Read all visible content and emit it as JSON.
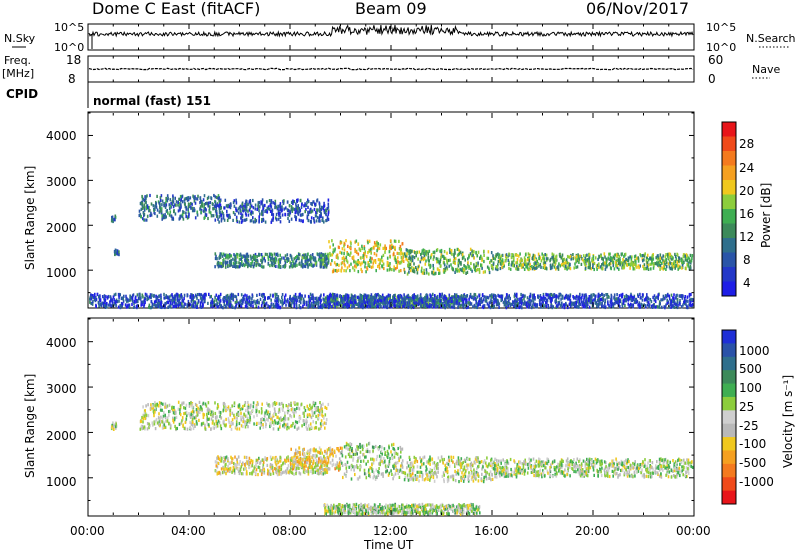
{
  "header": {
    "station": "Dome C East (fitACF)",
    "beam": "Beam 09",
    "date": "06/Nov/2017"
  },
  "strip_labels": {
    "nsky": "N.Sky",
    "nsky_ticks": [
      "10^5",
      "10^0"
    ],
    "nsearch": "N.Search",
    "nsearch_ticks": [
      "10^5",
      "10^0"
    ],
    "freq": "Freq.",
    "freq_unit": "[MHz]",
    "freq_ticks": [
      "18",
      "8"
    ],
    "nave": "Nave",
    "nave_ticks": [
      "60",
      "0"
    ],
    "cpid": "CPID",
    "cpid_text": "normal (fast) 151"
  },
  "axes": {
    "ylabel": "Slant Range [km]",
    "yticks": [
      "4000",
      "3000",
      "2000",
      "1000"
    ],
    "xlabel": "Time UT",
    "xticks": [
      "00:00",
      "04:00",
      "08:00",
      "12:00",
      "16:00",
      "20:00",
      "00:00"
    ]
  },
  "colorbars": {
    "power": {
      "label": "Power [dB]",
      "ticks": [
        "28",
        "24",
        "20",
        "16",
        "12",
        "8",
        "4"
      ],
      "colors": [
        "#e8151a",
        "#f04a1a",
        "#f47a1e",
        "#f5a020",
        "#f0c81e",
        "#8ccd3c",
        "#3fae52",
        "#3c8a5a",
        "#2f6f8c",
        "#2a55a8",
        "#2338c8",
        "#1e1ee6"
      ]
    },
    "velocity": {
      "label": "Velocity [m s⁻¹]",
      "ticks": [
        "1000",
        "500",
        "100",
        "25",
        "-25",
        "-100",
        "-500",
        "-1000"
      ],
      "colors": [
        "#1f2fd6",
        "#2a52a8",
        "#2f6f8c",
        "#3c8a5a",
        "#3fae52",
        "#8ccd3c",
        "#cfcfcf",
        "#b9b9b9",
        "#f0c81e",
        "#f5a020",
        "#f47a1e",
        "#f04a1a",
        "#e8151a"
      ]
    }
  },
  "chart_data": [
    {
      "type": "heatmap",
      "title": "Power",
      "xlabel": "Time UT",
      "ylabel": "Slant Range [km]",
      "x_range_hours": [
        0,
        24
      ],
      "y_range_km": [
        180,
        4500
      ],
      "z_range_db": [
        0,
        30
      ],
      "clusters": [
        {
          "t_start": 0.9,
          "t_end": 1.1,
          "r_low": 2100,
          "r_high": 2250,
          "value": 8
        },
        {
          "t_start": 1.0,
          "t_end": 1.2,
          "r_low": 1380,
          "r_high": 1480,
          "value": 8
        },
        {
          "t_start": 2.0,
          "t_end": 5.2,
          "r_low": 2150,
          "r_high": 2700,
          "value": 8
        },
        {
          "t_start": 5.0,
          "t_end": 9.5,
          "r_low": 2100,
          "r_high": 2600,
          "value": 6
        },
        {
          "t_start": 5.0,
          "t_end": 9.5,
          "r_low": 1100,
          "r_high": 1400,
          "value": 10
        },
        {
          "t_start": 9.5,
          "t_end": 12.5,
          "r_low": 1000,
          "r_high": 1700,
          "value": 18
        },
        {
          "t_start": 12.5,
          "t_end": 16.0,
          "r_low": 950,
          "r_high": 1500,
          "value": 14
        },
        {
          "t_start": 16.0,
          "t_end": 24.0,
          "r_low": 1050,
          "r_high": 1400,
          "value": 14
        },
        {
          "t_start": 9.3,
          "t_end": 14.8,
          "r_low": 230,
          "r_high": 450,
          "value": 12
        },
        {
          "t_start": 0.0,
          "t_end": 24.0,
          "r_low": 200,
          "r_high": 500,
          "value": 5
        }
      ]
    },
    {
      "type": "heatmap",
      "title": "Velocity",
      "xlabel": "Time UT",
      "ylabel": "Slant Range [km]",
      "x_range_hours": [
        0,
        24
      ],
      "y_range_km": [
        180,
        4500
      ],
      "z_range_ms": [
        -1000,
        1000
      ],
      "clusters": [
        {
          "t_start": 0.9,
          "t_end": 1.1,
          "r_low": 2100,
          "r_high": 2250,
          "value": 0
        },
        {
          "t_start": 2.0,
          "t_end": 9.5,
          "r_low": 2100,
          "r_high": 2700,
          "value": 0
        },
        {
          "t_start": 5.0,
          "t_end": 9.5,
          "r_low": 1100,
          "r_high": 1500,
          "value": -110
        },
        {
          "t_start": 8.0,
          "t_end": 10.0,
          "r_low": 1200,
          "r_high": 1700,
          "value": -200
        },
        {
          "t_start": 10.0,
          "t_end": 12.5,
          "r_low": 1000,
          "r_high": 1800,
          "value": 80
        },
        {
          "t_start": 12.5,
          "t_end": 16.0,
          "r_low": 950,
          "r_high": 1500,
          "value": -40
        },
        {
          "t_start": 16.0,
          "t_end": 24.0,
          "r_low": 1050,
          "r_high": 1450,
          "value": 30
        },
        {
          "t_start": 9.3,
          "t_end": 15.5,
          "r_low": 230,
          "r_high": 450,
          "value": 60
        }
      ]
    }
  ]
}
